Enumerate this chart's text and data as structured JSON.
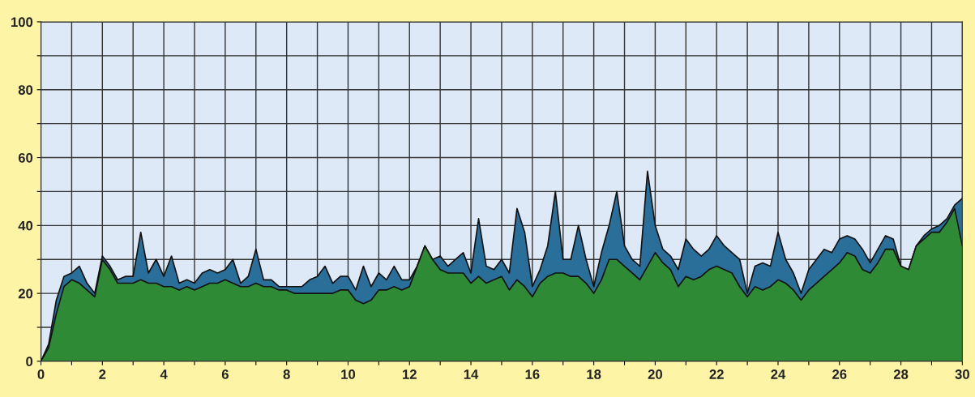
{
  "chart_data": {
    "type": "area",
    "x": [
      0,
      0.25,
      0.5,
      0.75,
      1,
      1.25,
      1.5,
      1.75,
      2,
      2.25,
      2.5,
      2.75,
      3,
      3.25,
      3.5,
      3.75,
      4,
      4.25,
      4.5,
      4.75,
      5,
      5.25,
      5.5,
      5.75,
      6,
      6.25,
      6.5,
      6.75,
      7,
      7.25,
      7.5,
      7.75,
      8,
      8.25,
      8.5,
      8.75,
      9,
      9.25,
      9.5,
      9.75,
      10,
      10.25,
      10.5,
      10.75,
      11,
      11.25,
      11.5,
      11.75,
      12,
      12.25,
      12.5,
      12.75,
      13,
      13.25,
      13.5,
      13.75,
      14,
      14.25,
      14.5,
      14.75,
      15,
      15.25,
      15.5,
      15.75,
      16,
      16.25,
      16.5,
      16.75,
      17,
      17.25,
      17.5,
      17.75,
      18,
      18.25,
      18.5,
      18.75,
      19,
      19.25,
      19.5,
      19.75,
      20,
      20.25,
      20.5,
      20.75,
      21,
      21.25,
      21.5,
      21.75,
      22,
      22.25,
      22.5,
      22.75,
      23,
      23.25,
      23.5,
      23.75,
      24,
      24.25,
      24.5,
      24.75,
      25,
      25.25,
      25.5,
      25.75,
      26,
      26.25,
      26.5,
      26.75,
      27,
      27.25,
      27.5,
      27.75,
      28,
      28.25,
      28.5,
      28.75,
      29,
      29.25,
      29.5,
      29.75,
      30
    ],
    "series": [
      {
        "color": "#2a6f9a",
        "values": [
          0,
          5,
          18,
          25,
          26,
          28,
          23,
          20,
          31,
          28,
          24,
          25,
          25,
          38,
          26,
          30,
          25,
          31,
          23,
          24,
          23,
          26,
          27,
          26,
          27,
          30,
          23,
          25,
          33,
          24,
          24,
          22,
          22,
          22,
          22,
          24,
          25,
          28,
          23,
          25,
          25,
          21,
          28,
          22,
          26,
          24,
          28,
          24,
          24,
          28,
          34,
          30,
          31,
          28,
          30,
          32,
          26,
          42,
          28,
          27,
          30,
          26,
          45,
          38,
          22,
          27,
          34,
          50,
          30,
          30,
          40,
          30,
          22,
          32,
          40,
          50,
          34,
          30,
          28,
          56,
          40,
          33,
          31,
          27,
          36,
          33,
          31,
          33,
          37,
          34,
          32,
          30,
          20,
          28,
          29,
          28,
          38,
          30,
          26,
          20,
          27,
          30,
          33,
          32,
          36,
          37,
          36,
          33,
          29,
          33,
          37,
          36,
          28,
          27,
          34,
          37,
          39,
          40,
          42,
          46,
          48
        ]
      },
      {
        "color": "#2f8a35",
        "values": [
          0,
          4,
          14,
          22,
          24,
          23,
          21,
          19,
          30,
          27,
          23,
          23,
          23,
          24,
          23,
          23,
          22,
          22,
          21,
          22,
          21,
          22,
          23,
          23,
          24,
          23,
          22,
          22,
          23,
          22,
          22,
          21,
          21,
          20,
          20,
          20,
          20,
          20,
          20,
          21,
          21,
          18,
          17,
          18,
          21,
          21,
          22,
          21,
          22,
          28,
          34,
          30,
          27,
          26,
          26,
          26,
          23,
          25,
          23,
          24,
          25,
          21,
          24,
          22,
          19,
          23,
          25,
          26,
          26,
          25,
          25,
          23,
          20,
          24,
          30,
          30,
          28,
          26,
          24,
          28,
          32,
          29,
          27,
          22,
          25,
          24,
          25,
          27,
          28,
          27,
          26,
          22,
          19,
          22,
          21,
          22,
          24,
          23,
          21,
          18,
          21,
          23,
          25,
          27,
          29,
          32,
          31,
          27,
          26,
          29,
          33,
          33,
          28,
          27,
          34,
          36,
          38,
          38,
          41,
          45,
          34
        ]
      }
    ],
    "xlim": [
      0,
      30
    ],
    "ylim": [
      0,
      100
    ],
    "xticks": [
      0,
      {
        "value": 1,
        "label": null
      },
      2,
      {
        "value": 3,
        "label": null
      },
      4,
      {
        "value": 5,
        "label": null
      },
      6,
      {
        "value": 7,
        "label": null
      },
      8,
      {
        "value": 9,
        "label": null
      },
      10,
      {
        "value": 11,
        "label": null
      },
      12,
      {
        "value": 13,
        "label": null
      },
      14,
      {
        "value": 15,
        "label": null
      },
      16,
      {
        "value": 17,
        "label": null
      },
      18,
      {
        "value": 19,
        "label": null
      },
      20,
      {
        "value": 21,
        "label": null
      },
      22,
      {
        "value": 23,
        "label": null
      },
      24,
      {
        "value": 25,
        "label": null
      },
      26,
      {
        "value": 27,
        "label": null
      },
      28,
      {
        "value": 29,
        "label": null
      },
      30
    ],
    "yticks": [
      0,
      {
        "value": 10,
        "label": null
      },
      20,
      {
        "value": 30,
        "label": null
      },
      40,
      {
        "value": 50,
        "label": null
      },
      60,
      {
        "value": 70,
        "label": null
      },
      80,
      {
        "value": 90,
        "label": null
      },
      100
    ],
    "grid": true
  }
}
